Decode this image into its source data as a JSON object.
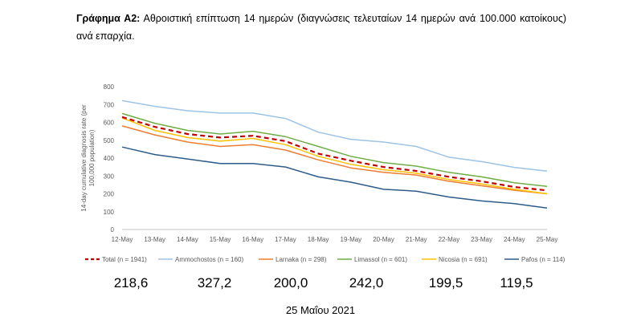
{
  "caption": {
    "label": "Γράφημα Α2:",
    "text": " Αθροιστική επίπτωση 14 ημερών (διαγνώσεις τελευταίων 14 ημερών ανά 100.000 κατοίκους) ανά επαρχία."
  },
  "chart_data": {
    "type": "line",
    "title": "",
    "xlabel": "",
    "ylabel": "14-day cumulative diagnosis rate (per 100,000 population)",
    "ylim": [
      0,
      800
    ],
    "yticks": [
      "0",
      "100",
      "200",
      "300",
      "400",
      "500",
      "600",
      "700",
      "800"
    ],
    "grid": false,
    "legend_position": "bottom",
    "categories": [
      "12-May",
      "13-May",
      "14-May",
      "15-May",
      "16-May",
      "17-May",
      "18-May",
      "19-May",
      "20-May",
      "21-May",
      "22-May",
      "23-May",
      "24-May",
      "25-May"
    ],
    "series": [
      {
        "name": "Total (n = 1941)",
        "color": "#c00000",
        "dashed": true,
        "values": [
          630,
          575,
          535,
          515,
          525,
          495,
          425,
          385,
          350,
          328,
          295,
          270,
          238,
          219
        ]
      },
      {
        "name": "Ammochostos (n = 160)",
        "color": "#9dc3e6",
        "dashed": false,
        "values": [
          722,
          690,
          665,
          652,
          652,
          622,
          545,
          505,
          490,
          465,
          405,
          380,
          348,
          327
        ]
      },
      {
        "name": "Larnaka (n = 298)",
        "color": "#ed7d31",
        "dashed": false,
        "values": [
          580,
          530,
          490,
          465,
          475,
          445,
          390,
          345,
          320,
          305,
          270,
          245,
          220,
          200
        ]
      },
      {
        "name": "Limassol (n = 601)",
        "color": "#70ad47",
        "dashed": false,
        "values": [
          650,
          595,
          555,
          535,
          550,
          520,
          465,
          410,
          375,
          355,
          320,
          295,
          262,
          242
        ]
      },
      {
        "name": "Nicosia (n = 691)",
        "color": "#ffc000",
        "dashed": false,
        "values": [
          625,
          555,
          515,
          495,
          510,
          475,
          410,
          365,
          335,
          315,
          280,
          255,
          225,
          200
        ]
      },
      {
        "name": "Pafos (n = 114)",
        "color": "#2e5c8a",
        "dashed": false,
        "values": [
          462,
          420,
          395,
          370,
          370,
          350,
          295,
          265,
          225,
          215,
          182,
          160,
          145,
          120
        ]
      }
    ]
  },
  "values_row": [
    "218,6",
    "327,2",
    "200,0",
    "242,0",
    "199,5",
    "119,5"
  ],
  "date": "25 Μαΐου 2021"
}
